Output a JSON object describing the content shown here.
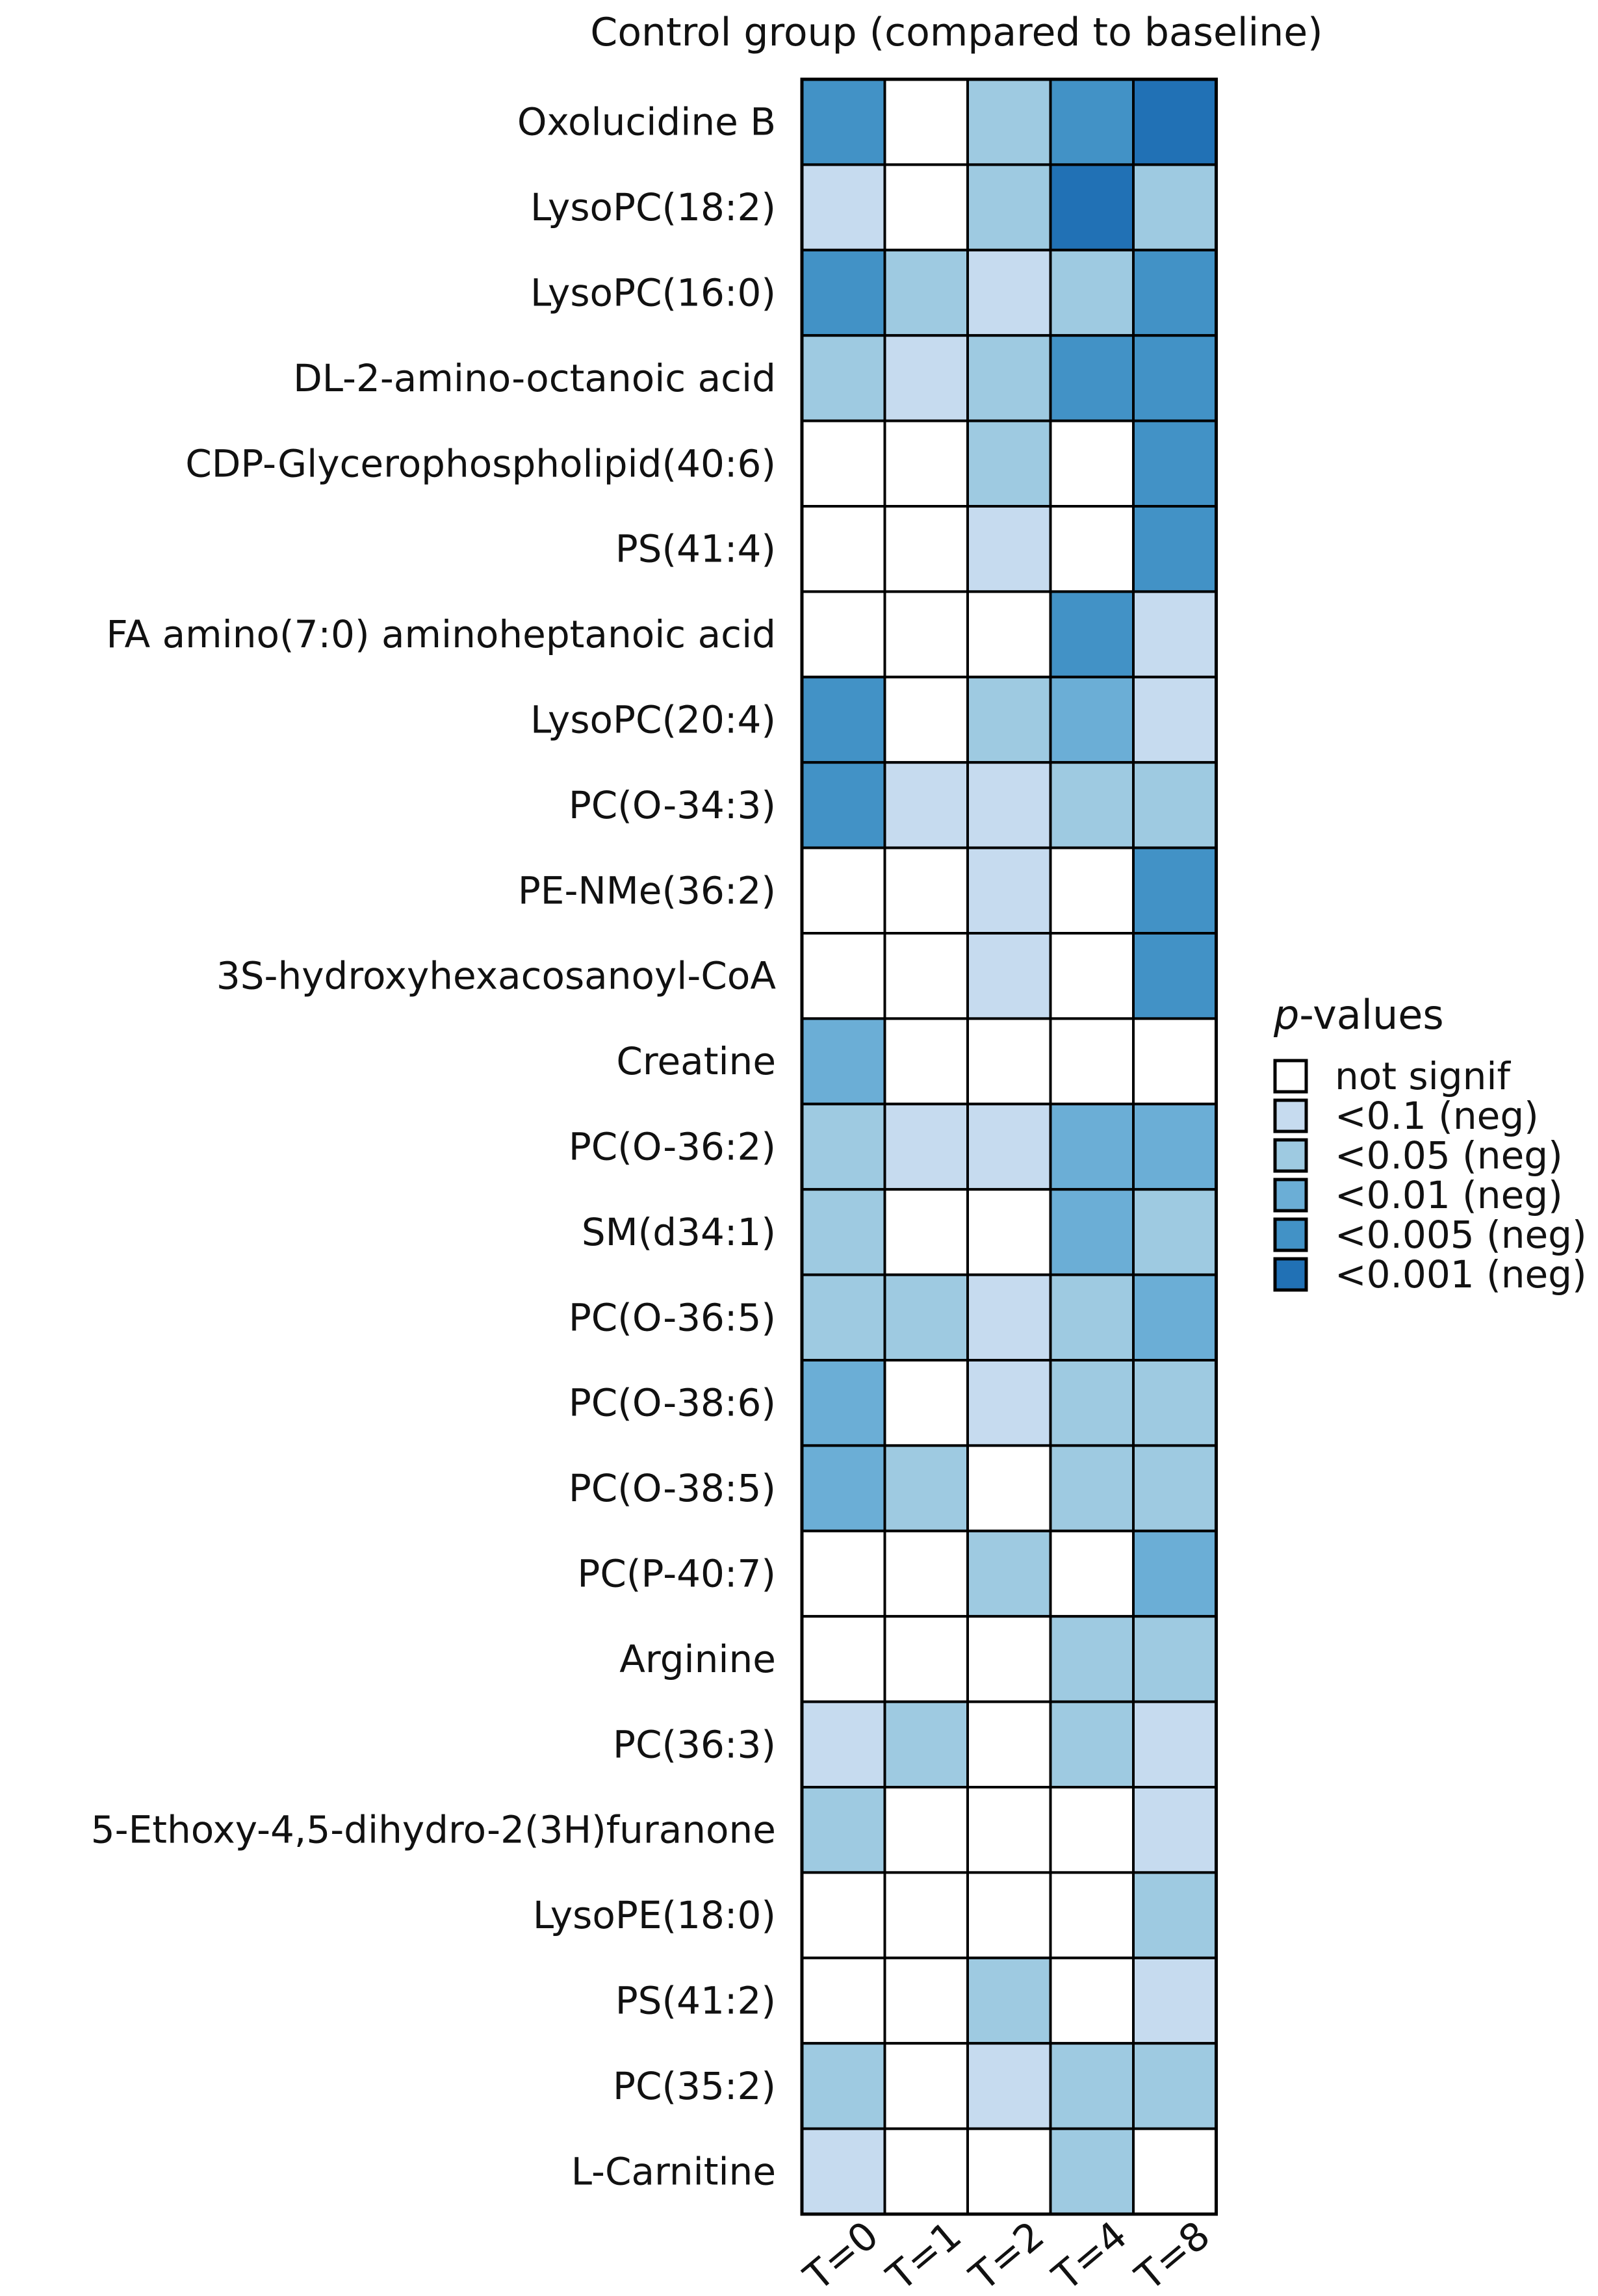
{
  "chart_data": {
    "type": "heatmap",
    "title": "Control group (compared to baseline)",
    "columns": [
      "T=0",
      "T=1",
      "T=2",
      "T=4",
      "T=8"
    ],
    "rows": [
      "Oxolucidine B",
      "LysoPC(18:2)",
      "LysoPC(16:0)",
      "DL-2-amino-octanoic acid",
      "CDP-Glycerophospholipid(40:6)",
      "PS(41:4)",
      "FA amino(7:0) aminoheptanoic acid",
      "LysoPC(20:4)",
      "PC(O-34:3)",
      "PE-NMe(36:2)",
      "3S-hydroxyhexacosanoyl-CoA",
      "Creatine",
      "PC(O-36:2)",
      "SM(d34:1)",
      "PC(O-36:5)",
      "PC(O-38:6)",
      "PC(O-38:5)",
      "PC(P-40:7)",
      "Arginine",
      "PC(36:3)",
      "5-Ethoxy-4,5-dihydro-2(3H)furanone",
      "LysoPE(18:0)",
      "PS(41:2)",
      "PC(35:2)",
      "L-Carnitine"
    ],
    "level_index_note": "values index into legend.levels (0 = not signif ... 5 = <0.001 (neg))",
    "values": [
      [
        4,
        0,
        2,
        4,
        5
      ],
      [
        1,
        0,
        2,
        5,
        2
      ],
      [
        4,
        2,
        1,
        2,
        4
      ],
      [
        2,
        1,
        2,
        4,
        4
      ],
      [
        0,
        0,
        2,
        0,
        4
      ],
      [
        0,
        0,
        1,
        0,
        4
      ],
      [
        0,
        0,
        0,
        4,
        1
      ],
      [
        4,
        0,
        2,
        3,
        1
      ],
      [
        4,
        1,
        1,
        2,
        2
      ],
      [
        0,
        0,
        1,
        0,
        4
      ],
      [
        0,
        0,
        1,
        0,
        4
      ],
      [
        3,
        0,
        0,
        0,
        0
      ],
      [
        2,
        1,
        1,
        3,
        3
      ],
      [
        2,
        0,
        0,
        3,
        2
      ],
      [
        2,
        2,
        1,
        2,
        3
      ],
      [
        3,
        0,
        1,
        2,
        2
      ],
      [
        3,
        2,
        0,
        2,
        2
      ],
      [
        0,
        0,
        2,
        0,
        3
      ],
      [
        0,
        0,
        0,
        2,
        2
      ],
      [
        1,
        2,
        0,
        2,
        1
      ],
      [
        2,
        0,
        0,
        0,
        1
      ],
      [
        0,
        0,
        0,
        0,
        2
      ],
      [
        0,
        0,
        2,
        0,
        1
      ],
      [
        2,
        0,
        1,
        2,
        2
      ],
      [
        1,
        0,
        0,
        2,
        0
      ]
    ],
    "legend": {
      "title_prefix": "p",
      "title_suffix": "-values",
      "levels": [
        "not signif",
        "<0.1 (neg)",
        "<0.05 (neg)",
        "<0.01 (neg)",
        "<0.005 (neg)",
        "<0.001 (neg)"
      ],
      "colors": [
        "#ffffff",
        "#c6dbef",
        "#9ecae1",
        "#6baed6",
        "#4292c6",
        "#2171b5"
      ]
    }
  }
}
